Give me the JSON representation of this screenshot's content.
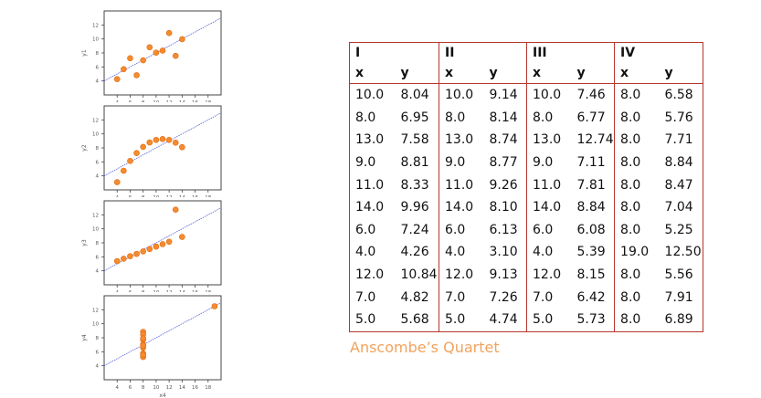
{
  "chart_data": [
    {
      "type": "scatter",
      "ylabel": "y1",
      "xlim": [
        2,
        20
      ],
      "ylim": [
        2,
        14
      ],
      "xticks": [
        4,
        6,
        8,
        10,
        12,
        14,
        16,
        18
      ],
      "yticks": [
        4,
        6,
        8,
        10,
        12
      ],
      "x": [
        10,
        8,
        13,
        9,
        11,
        14,
        6,
        4,
        12,
        7,
        5
      ],
      "y": [
        8.04,
        6.95,
        7.58,
        8.81,
        8.33,
        9.96,
        7.24,
        4.26,
        10.84,
        4.82,
        5.68
      ],
      "fit": [
        3,
        0.5
      ]
    },
    {
      "type": "scatter",
      "ylabel": "y2",
      "xlim": [
        2,
        20
      ],
      "ylim": [
        2,
        14
      ],
      "xticks": [
        4,
        6,
        8,
        10,
        12,
        14,
        16,
        18
      ],
      "yticks": [
        4,
        6,
        8,
        10,
        12
      ],
      "x": [
        10,
        8,
        13,
        9,
        11,
        14,
        6,
        4,
        12,
        7,
        5
      ],
      "y": [
        9.14,
        8.14,
        8.74,
        8.77,
        9.26,
        8.1,
        6.13,
        3.1,
        9.13,
        7.26,
        4.74
      ],
      "fit": [
        3,
        0.5
      ]
    },
    {
      "type": "scatter",
      "ylabel": "y3",
      "xlim": [
        2,
        20
      ],
      "ylim": [
        2,
        14
      ],
      "xticks": [
        4,
        6,
        8,
        10,
        12,
        14,
        16,
        18
      ],
      "yticks": [
        4,
        6,
        8,
        10,
        12
      ],
      "x": [
        10,
        8,
        13,
        9,
        11,
        14,
        6,
        4,
        12,
        7,
        5
      ],
      "y": [
        7.46,
        6.77,
        12.74,
        7.11,
        7.81,
        8.84,
        6.08,
        5.39,
        8.15,
        6.42,
        5.73
      ],
      "fit": [
        3,
        0.5
      ]
    },
    {
      "type": "scatter",
      "xlabel": "x4",
      "ylabel": "y4",
      "xlim": [
        2,
        20
      ],
      "ylim": [
        2,
        14
      ],
      "xticks": [
        4,
        6,
        8,
        10,
        12,
        14,
        16,
        18
      ],
      "yticks": [
        4,
        6,
        8,
        10,
        12
      ],
      "x": [
        8,
        8,
        8,
        8,
        8,
        8,
        8,
        19,
        8,
        8,
        8
      ],
      "y": [
        6.58,
        5.76,
        7.71,
        8.84,
        8.47,
        7.04,
        5.25,
        12.5,
        5.56,
        7.91,
        6.89
      ],
      "fit": [
        3,
        0.5
      ]
    },
    {
      "type": "table",
      "groups": [
        "I",
        "II",
        "III",
        "IV"
      ],
      "columns": [
        "x",
        "y",
        "x",
        "y",
        "x",
        "y",
        "x",
        "y"
      ],
      "rows": [
        [
          "10.0",
          "8.04",
          "10.0",
          "9.14",
          "10.0",
          "7.46",
          "8.0",
          "6.58"
        ],
        [
          "8.0",
          "6.95",
          "8.0",
          "8.14",
          "8.0",
          "6.77",
          "8.0",
          "5.76"
        ],
        [
          "13.0",
          "7.58",
          "13.0",
          "8.74",
          "13.0",
          "12.74",
          "8.0",
          "7.71"
        ],
        [
          "9.0",
          "8.81",
          "9.0",
          "8.77",
          "9.0",
          "7.11",
          "8.0",
          "8.84"
        ],
        [
          "11.0",
          "8.33",
          "11.0",
          "9.26",
          "11.0",
          "7.81",
          "8.0",
          "8.47"
        ],
        [
          "14.0",
          "9.96",
          "14.0",
          "8.10",
          "14.0",
          "8.84",
          "8.0",
          "7.04"
        ],
        [
          "6.0",
          "7.24",
          "6.0",
          "6.13",
          "6.0",
          "6.08",
          "8.0",
          "5.25"
        ],
        [
          "4.0",
          "4.26",
          "4.0",
          "3.10",
          "4.0",
          "5.39",
          "19.0",
          "12.50"
        ],
        [
          "12.0",
          "10.84",
          "12.0",
          "9.13",
          "12.0",
          "8.15",
          "8.0",
          "5.56"
        ],
        [
          "7.0",
          "4.82",
          "7.0",
          "7.26",
          "7.0",
          "6.42",
          "8.0",
          "7.91"
        ],
        [
          "5.0",
          "5.68",
          "5.0",
          "4.74",
          "5.0",
          "5.73",
          "8.0",
          "6.89"
        ]
      ]
    }
  ],
  "caption": "Anscombe’s Quartet",
  "colors": {
    "point": "#f58b2f",
    "point_edge": "#e06a10",
    "fit_line": "#3a45d6",
    "table_border": "#b5372e",
    "caption": "#f0a35e"
  }
}
